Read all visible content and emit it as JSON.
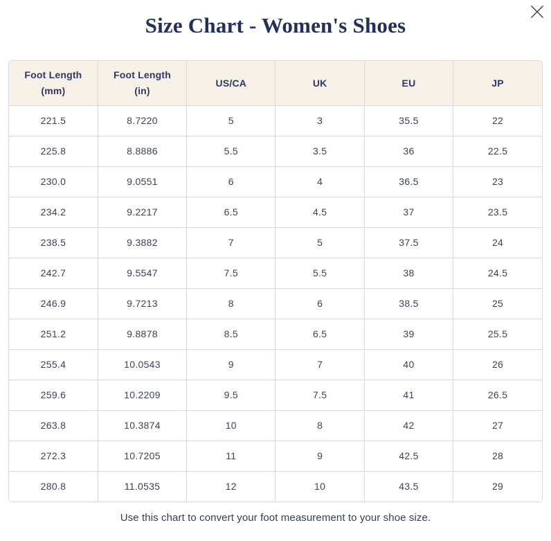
{
  "dialog": {
    "title": "Size Chart - Women's Shoes",
    "footer": "Use this chart to convert your foot measurement to your shoe size.",
    "close_icon": "x-close-icon"
  },
  "colors": {
    "title_navy": "#232f5c",
    "header_background": "#f7f1e7",
    "header_text": "#2d3869",
    "cell_text": "#3c4358",
    "grid_border": "#d9d9d9",
    "footer_text": "#343e52",
    "close_icon": "#343b52",
    "page_background": "#ffffff"
  },
  "table": {
    "headers": [
      {
        "label": "Foot Length",
        "sub": "(mm)"
      },
      {
        "label": "Foot Length",
        "sub": "(in)"
      },
      {
        "label": "US/CA",
        "sub": ""
      },
      {
        "label": "UK",
        "sub": ""
      },
      {
        "label": "EU",
        "sub": ""
      },
      {
        "label": "JP",
        "sub": ""
      }
    ],
    "rows": [
      [
        "221.5",
        "8.7220",
        "5",
        "3",
        "35.5",
        "22"
      ],
      [
        "225.8",
        "8.8886",
        "5.5",
        "3.5",
        "36",
        "22.5"
      ],
      [
        "230.0",
        "9.0551",
        "6",
        "4",
        "36.5",
        "23"
      ],
      [
        "234.2",
        "9.2217",
        "6.5",
        "4.5",
        "37",
        "23.5"
      ],
      [
        "238.5",
        "9.3882",
        "7",
        "5",
        "37.5",
        "24"
      ],
      [
        "242.7",
        "9.5547",
        "7.5",
        "5.5",
        "38",
        "24.5"
      ],
      [
        "246.9",
        "9.7213",
        "8",
        "6",
        "38.5",
        "25"
      ],
      [
        "251.2",
        "9.8878",
        "8.5",
        "6.5",
        "39",
        "25.5"
      ],
      [
        "255.4",
        "10.0543",
        "9",
        "7",
        "40",
        "26"
      ],
      [
        "259.6",
        "10.2209",
        "9.5",
        "7.5",
        "41",
        "26.5"
      ],
      [
        "263.8",
        "10.3874",
        "10",
        "8",
        "42",
        "27"
      ],
      [
        "272.3",
        "10.7205",
        "11",
        "9",
        "42.5",
        "28"
      ],
      [
        "280.8",
        "11.0535",
        "12",
        "10",
        "43.5",
        "29"
      ]
    ]
  }
}
